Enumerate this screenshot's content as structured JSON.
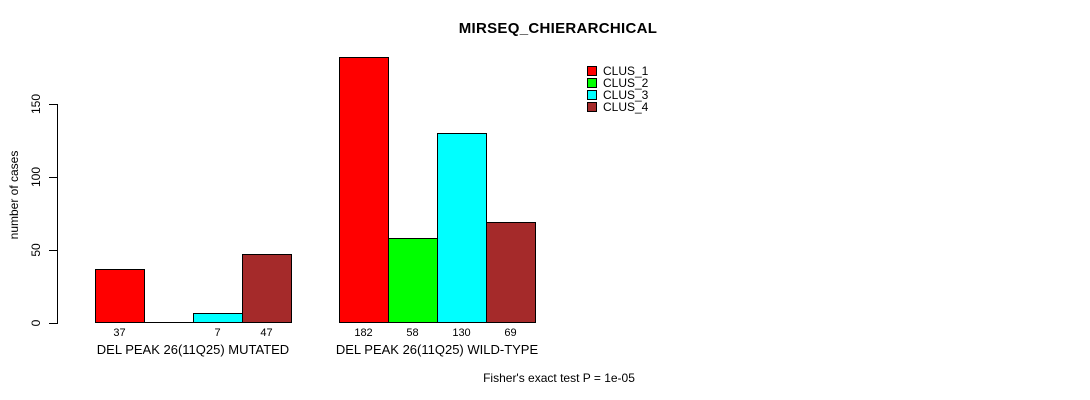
{
  "chart_data": {
    "type": "bar",
    "title": "MIRSEQ_CHIERARCHICAL",
    "ylabel": "number of cases",
    "xlabel": "",
    "ylim": [
      0,
      150
    ],
    "yticks": [
      0,
      50,
      100,
      150
    ],
    "grid": false,
    "legend_position": "top-right-inside",
    "categories": [
      "DEL PEAK 26(11Q25) MUTATED",
      "DEL PEAK 26(11Q25) WILD-TYPE"
    ],
    "series": [
      {
        "name": "CLUS_1",
        "color": "#FF0000",
        "values": [
          37,
          182
        ]
      },
      {
        "name": "CLUS_2",
        "color": "#00FF00",
        "values": [
          0,
          58
        ]
      },
      {
        "name": "CLUS_3",
        "color": "#00FFFF",
        "values": [
          7,
          130
        ]
      },
      {
        "name": "CLUS_4",
        "color": "#A52A2A",
        "values": [
          47,
          69
        ]
      }
    ],
    "bar_value_labels": [
      [
        "37",
        "",
        "7",
        "47"
      ],
      [
        "182",
        "58",
        "130",
        "69"
      ]
    ],
    "annotation": "Fisher's exact test P = 1e-05"
  },
  "colors": {
    "axis": "#000000",
    "background": "#FFFFFF"
  }
}
